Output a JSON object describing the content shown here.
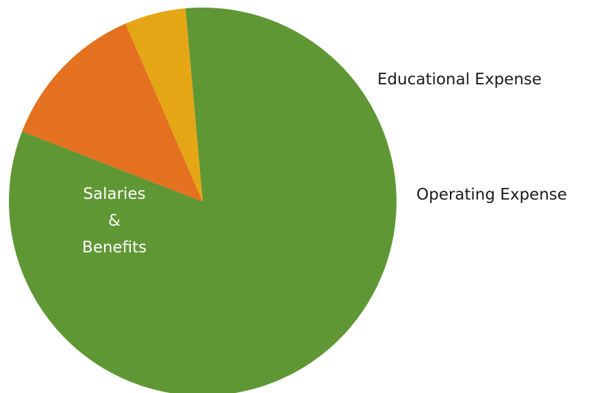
{
  "chart_data": {
    "type": "pie",
    "title": "",
    "slices": [
      {
        "label": "Salaries & Benefits",
        "label_lines": [
          "Salaries",
          "&",
          "Benefits"
        ],
        "value": 82.3,
        "color": "#5f9735",
        "label_placement": "inside",
        "label_color": "#ffffff"
      },
      {
        "label": "Educational Expense",
        "label_lines": [
          "Educational Expense"
        ],
        "value": 12.6,
        "color": "#e3711f",
        "label_placement": "outside",
        "label_color": "#1a1a1a"
      },
      {
        "label": "Operating Expense",
        "label_lines": [
          "Operating Expense"
        ],
        "value": 5.1,
        "color": "#e5a616",
        "label_placement": "outside",
        "label_color": "#1a1a1a"
      }
    ],
    "start_angle_deg": 95.1,
    "direction": "clockwise",
    "legend": "none"
  }
}
